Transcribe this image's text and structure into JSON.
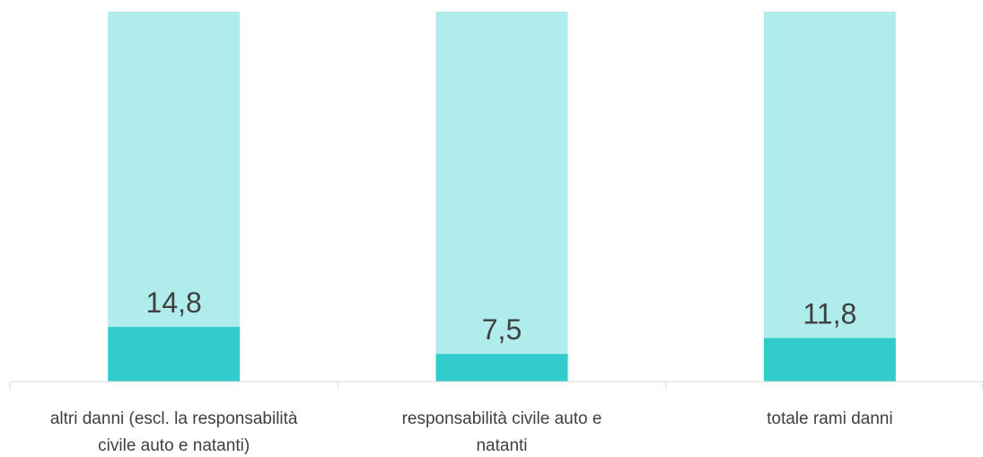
{
  "chart_data": {
    "type": "bar",
    "stacked": true,
    "categories": [
      [
        "altri danni (escl. la responsabilità",
        "civile auto e natanti)"
      ],
      [
        "responsabilità civile auto e",
        "natanti"
      ],
      [
        "totale rami danni"
      ]
    ],
    "series": [
      {
        "values": [
          14.8,
          7.5,
          11.8
        ]
      },
      {
        "values": [
          85.2,
          92.5,
          88.2
        ]
      }
    ],
    "data_labels": [
      "14,8",
      "7,5",
      "11,8"
    ],
    "ylim": [
      0,
      100
    ],
    "grid": false,
    "legend": "none",
    "colors": [
      "#33cccc",
      "#b0ecec"
    ]
  }
}
